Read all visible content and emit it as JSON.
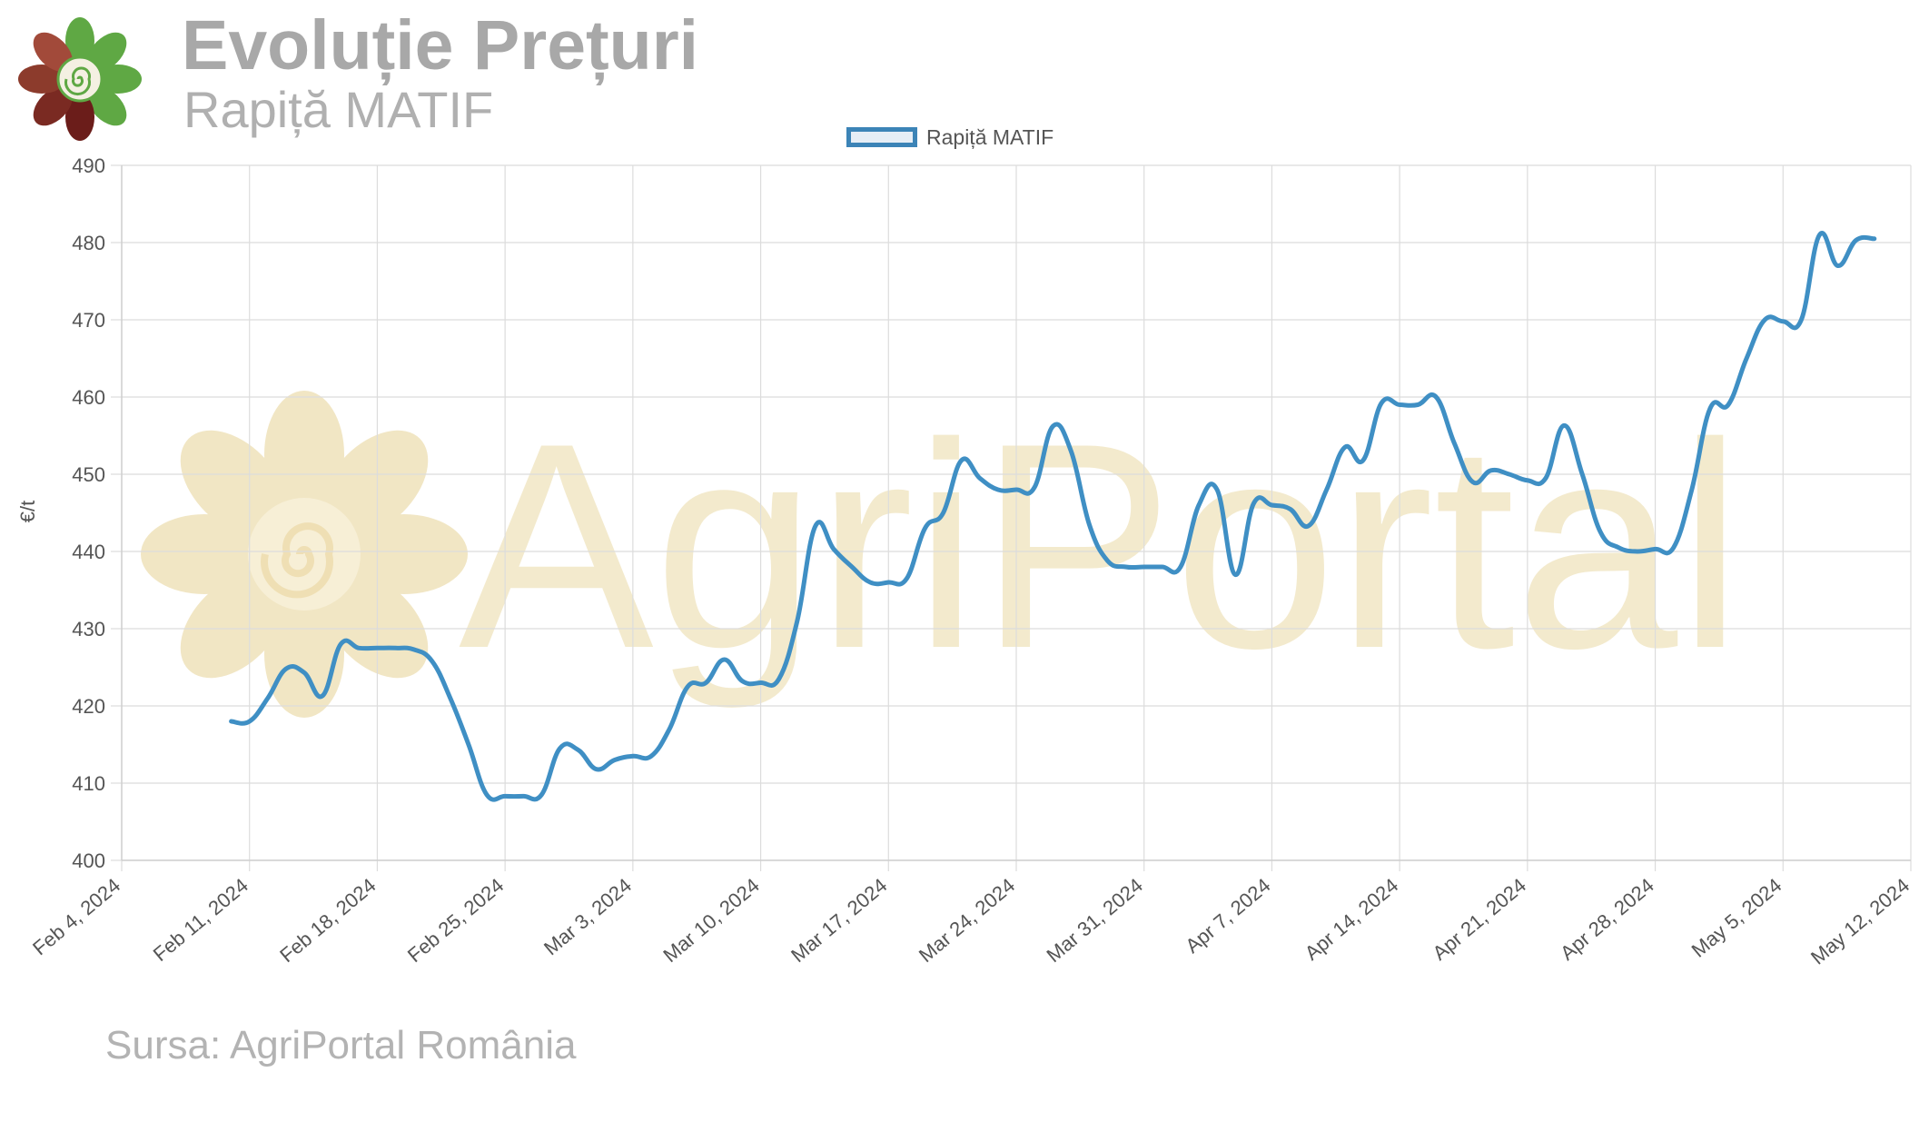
{
  "header": {
    "title": "Evoluție Prețuri",
    "subtitle": "Rapiță MATIF"
  },
  "legend": {
    "label": "Rapiță MATIF"
  },
  "source": "Sursa: AgriPortal România",
  "watermark": "AgriPortal",
  "colors": {
    "line": "#3f8fc4",
    "grid": "#dcdcdc",
    "axis_text": "#555555",
    "watermark": "#f1e6c4",
    "title": "#a8a8a8"
  },
  "chart_data": {
    "type": "line",
    "ylabel": "€/t",
    "xlabel": "",
    "ylim": [
      400,
      490
    ],
    "yticks": [
      400,
      410,
      420,
      430,
      440,
      450,
      460,
      470,
      480,
      490
    ],
    "xlim": [
      "2024-02-04",
      "2024-05-12"
    ],
    "xticks": [
      "Feb 4, 2024",
      "Feb 11, 2024",
      "Feb 18, 2024",
      "Feb 25, 2024",
      "Mar 3, 2024",
      "Mar 10, 2024",
      "Mar 17, 2024",
      "Mar 24, 2024",
      "Mar 31, 2024",
      "Apr 7, 2024",
      "Apr 14, 2024",
      "Apr 21, 2024",
      "Apr 28, 2024",
      "May 5, 2024",
      "May 12, 2024"
    ],
    "grid": true,
    "legend_position": "top",
    "series": [
      {
        "name": "Rapiță MATIF",
        "points": [
          [
            "2024-02-10",
            418.0
          ],
          [
            "2024-02-11",
            418.0
          ],
          [
            "2024-02-12",
            421.0
          ],
          [
            "2024-02-13",
            424.8
          ],
          [
            "2024-02-14",
            424.3
          ],
          [
            "2024-02-15",
            421.3
          ],
          [
            "2024-02-16",
            428.0
          ],
          [
            "2024-02-17",
            427.5
          ],
          [
            "2024-02-18",
            427.5
          ],
          [
            "2024-02-19",
            427.5
          ],
          [
            "2024-02-20",
            427.3
          ],
          [
            "2024-02-21",
            425.8
          ],
          [
            "2024-02-22",
            421.0
          ],
          [
            "2024-02-23",
            415.0
          ],
          [
            "2024-02-24",
            408.5
          ],
          [
            "2024-02-25",
            408.3
          ],
          [
            "2024-02-26",
            408.3
          ],
          [
            "2024-02-27",
            408.5
          ],
          [
            "2024-02-28",
            414.5
          ],
          [
            "2024-02-29",
            414.3
          ],
          [
            "2024-03-01",
            411.8
          ],
          [
            "2024-03-02",
            413.0
          ],
          [
            "2024-03-03",
            413.5
          ],
          [
            "2024-03-04",
            413.5
          ],
          [
            "2024-03-05",
            417.0
          ],
          [
            "2024-03-06",
            422.5
          ],
          [
            "2024-03-07",
            423.0
          ],
          [
            "2024-03-08",
            426.0
          ],
          [
            "2024-03-09",
            423.2
          ],
          [
            "2024-03-10",
            423.0
          ],
          [
            "2024-03-11",
            423.5
          ],
          [
            "2024-03-12",
            431.0
          ],
          [
            "2024-03-13",
            443.3
          ],
          [
            "2024-03-14",
            440.3
          ],
          [
            "2024-03-15",
            438.0
          ],
          [
            "2024-03-16",
            436.0
          ],
          [
            "2024-03-17",
            436.0
          ],
          [
            "2024-03-18",
            436.5
          ],
          [
            "2024-03-19",
            443.0
          ],
          [
            "2024-03-20",
            445.0
          ],
          [
            "2024-03-21",
            451.8
          ],
          [
            "2024-03-22",
            449.5
          ],
          [
            "2024-03-23",
            448.0
          ],
          [
            "2024-03-24",
            448.0
          ],
          [
            "2024-03-25",
            448.3
          ],
          [
            "2024-03-26",
            456.2
          ],
          [
            "2024-03-27",
            453.0
          ],
          [
            "2024-03-28",
            443.5
          ],
          [
            "2024-03-29",
            438.8
          ],
          [
            "2024-03-30",
            438.0
          ],
          [
            "2024-03-31",
            438.0
          ],
          [
            "2024-04-01",
            438.0
          ],
          [
            "2024-04-02",
            438.0
          ],
          [
            "2024-04-03",
            446.0
          ],
          [
            "2024-04-04",
            448.0
          ],
          [
            "2024-04-05",
            437.0
          ],
          [
            "2024-04-06",
            446.2
          ],
          [
            "2024-04-07",
            446.0
          ],
          [
            "2024-04-08",
            445.5
          ],
          [
            "2024-04-09",
            443.3
          ],
          [
            "2024-04-10",
            448.0
          ],
          [
            "2024-04-11",
            453.5
          ],
          [
            "2024-04-12",
            451.8
          ],
          [
            "2024-04-13",
            459.2
          ],
          [
            "2024-04-14",
            459.0
          ],
          [
            "2024-04-15",
            459.0
          ],
          [
            "2024-04-16",
            460.0
          ],
          [
            "2024-04-17",
            454.0
          ],
          [
            "2024-04-18",
            449.0
          ],
          [
            "2024-04-19",
            450.5
          ],
          [
            "2024-04-20",
            450.0
          ],
          [
            "2024-04-21",
            449.2
          ],
          [
            "2024-04-22",
            449.5
          ],
          [
            "2024-04-23",
            456.3
          ],
          [
            "2024-04-24",
            450.0
          ],
          [
            "2024-04-25",
            442.5
          ],
          [
            "2024-04-26",
            440.5
          ],
          [
            "2024-04-27",
            440.0
          ],
          [
            "2024-04-28",
            440.3
          ],
          [
            "2024-04-29",
            440.5
          ],
          [
            "2024-04-30",
            448.0
          ],
          [
            "2024-05-01",
            458.5
          ],
          [
            "2024-05-02",
            459.0
          ],
          [
            "2024-05-03",
            465.0
          ],
          [
            "2024-05-04",
            470.0
          ],
          [
            "2024-05-05",
            469.8
          ],
          [
            "2024-05-06",
            470.0
          ],
          [
            "2024-05-07",
            481.0
          ],
          [
            "2024-05-08",
            477.0
          ],
          [
            "2024-05-09",
            480.3
          ],
          [
            "2024-05-10",
            480.5
          ]
        ]
      }
    ]
  }
}
